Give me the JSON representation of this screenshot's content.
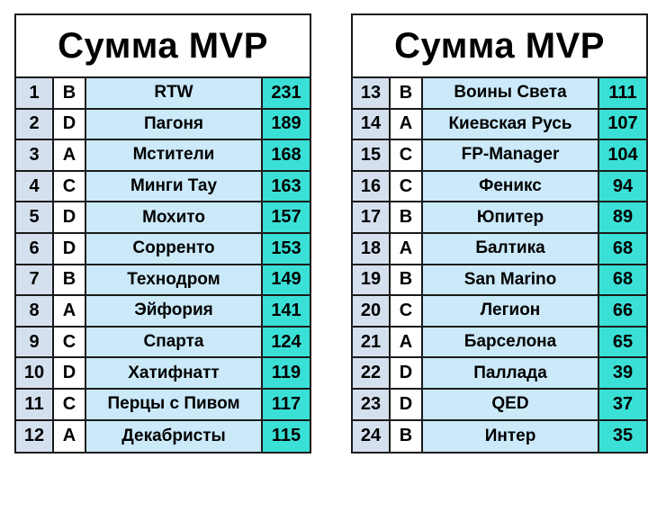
{
  "tables": [
    {
      "title": "Сумма MVP",
      "rows": [
        {
          "rank": "1",
          "division": "B",
          "team": "RTW",
          "score": "231"
        },
        {
          "rank": "2",
          "division": "D",
          "team": "Пагоня",
          "score": "189"
        },
        {
          "rank": "3",
          "division": "A",
          "team": "Мстители",
          "score": "168"
        },
        {
          "rank": "4",
          "division": "C",
          "team": "Минги Тау",
          "score": "163"
        },
        {
          "rank": "5",
          "division": "D",
          "team": "Мохито",
          "score": "157"
        },
        {
          "rank": "6",
          "division": "D",
          "team": "Сорренто",
          "score": "153"
        },
        {
          "rank": "7",
          "division": "B",
          "team": "Технодром",
          "score": "149"
        },
        {
          "rank": "8",
          "division": "A",
          "team": "Эйфория",
          "score": "141"
        },
        {
          "rank": "9",
          "division": "C",
          "team": "Спарта",
          "score": "124"
        },
        {
          "rank": "10",
          "division": "D",
          "team": "Хатифнатт",
          "score": "119"
        },
        {
          "rank": "11",
          "division": "C",
          "team": "Перцы с Пивом",
          "score": "117"
        },
        {
          "rank": "12",
          "division": "A",
          "team": "Декабристы",
          "score": "115"
        }
      ]
    },
    {
      "title": "Сумма MVP",
      "rows": [
        {
          "rank": "13",
          "division": "B",
          "team": "Воины Света",
          "score": "111"
        },
        {
          "rank": "14",
          "division": "A",
          "team": "Киевская Русь",
          "score": "107"
        },
        {
          "rank": "15",
          "division": "C",
          "team": "FP-Manager",
          "score": "104"
        },
        {
          "rank": "16",
          "division": "C",
          "team": "Феникс",
          "score": "94"
        },
        {
          "rank": "17",
          "division": "B",
          "team": "Юпитер",
          "score": "89"
        },
        {
          "rank": "18",
          "division": "A",
          "team": "Балтика",
          "score": "68"
        },
        {
          "rank": "19",
          "division": "B",
          "team": "San Marino",
          "score": "68"
        },
        {
          "rank": "20",
          "division": "C",
          "team": "Легион",
          "score": "66"
        },
        {
          "rank": "21",
          "division": "A",
          "team": "Барселона",
          "score": "65"
        },
        {
          "rank": "22",
          "division": "D",
          "team": "Паллада",
          "score": "39"
        },
        {
          "rank": "23",
          "division": "D",
          "team": "QED",
          "score": "37"
        },
        {
          "rank": "24",
          "division": "B",
          "team": "Интер",
          "score": "35"
        }
      ]
    }
  ]
}
